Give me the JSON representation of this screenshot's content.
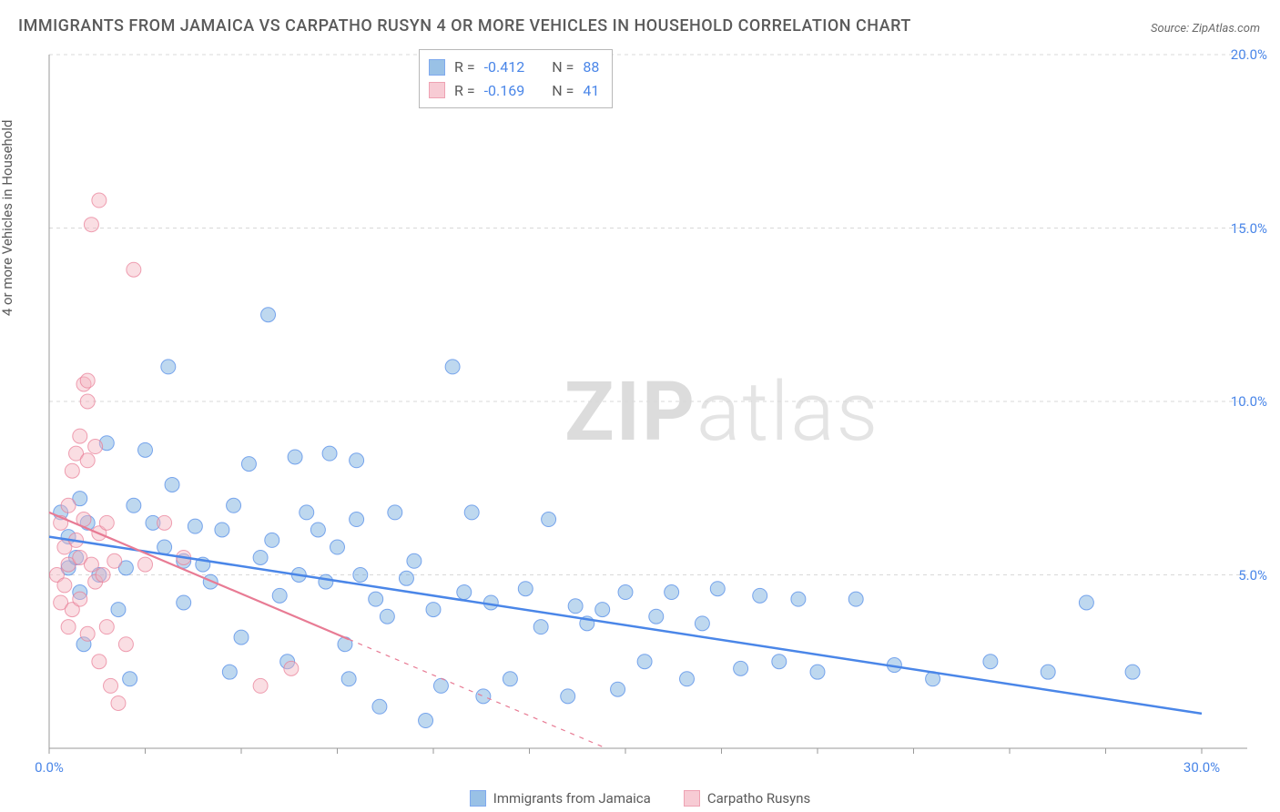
{
  "title": "IMMIGRANTS FROM JAMAICA VS CARPATHO RUSYN 4 OR MORE VEHICLES IN HOUSEHOLD CORRELATION CHART",
  "source_prefix": "Source: ",
  "source_name": "ZipAtlas.com",
  "y_axis_label": "4 or more Vehicles in Household",
  "watermark_bold": "ZIP",
  "watermark_light": "atlas",
  "chart": {
    "type": "scatter",
    "background_color": "#ffffff",
    "grid_color": "#d8d8d8",
    "axis_line_color": "#9a9a9a",
    "xlim": [
      0,
      30
    ],
    "ylim": [
      0,
      20
    ],
    "x_ticks": [
      0,
      30
    ],
    "x_tick_labels": [
      "0.0%",
      "30.0%"
    ],
    "x_tick_minor_step": 2.5,
    "y_ticks": [
      5,
      10,
      15,
      20
    ],
    "y_tick_labels": [
      "5.0%",
      "10.0%",
      "15.0%",
      "20.0%"
    ],
    "y_label_color": "#4a86e8",
    "x_label_color": "#4a86e8",
    "marker_radius": 8,
    "marker_opacity": 0.45,
    "series": [
      {
        "name": "Immigrants from Jamaica",
        "color": "#6fa8dc",
        "stroke_color": "#4a86e8",
        "r_value": "-0.412",
        "n_value": "88",
        "trend_line": {
          "x1": 0,
          "y1": 6.1,
          "x2": 30,
          "y2": 1.0,
          "width": 2.5,
          "dash_after_x": null
        },
        "points": [
          [
            0.3,
            6.8
          ],
          [
            0.5,
            5.2
          ],
          [
            0.5,
            6.1
          ],
          [
            0.7,
            5.5
          ],
          [
            0.8,
            7.2
          ],
          [
            0.8,
            4.5
          ],
          [
            0.9,
            3.0
          ],
          [
            1.0,
            6.5
          ],
          [
            1.3,
            5.0
          ],
          [
            1.5,
            8.8
          ],
          [
            1.8,
            4.0
          ],
          [
            2.0,
            5.2
          ],
          [
            2.1,
            2.0
          ],
          [
            2.2,
            7.0
          ],
          [
            2.5,
            8.6
          ],
          [
            2.7,
            6.5
          ],
          [
            3.1,
            11.0
          ],
          [
            3.0,
            5.8
          ],
          [
            3.2,
            7.6
          ],
          [
            3.5,
            5.4
          ],
          [
            3.5,
            4.2
          ],
          [
            3.8,
            6.4
          ],
          [
            4.0,
            5.3
          ],
          [
            4.2,
            4.8
          ],
          [
            4.5,
            6.3
          ],
          [
            4.7,
            2.2
          ],
          [
            4.8,
            7.0
          ],
          [
            5.0,
            3.2
          ],
          [
            5.2,
            8.2
          ],
          [
            5.5,
            5.5
          ],
          [
            5.7,
            12.5
          ],
          [
            5.8,
            6.0
          ],
          [
            6.0,
            4.4
          ],
          [
            6.2,
            2.5
          ],
          [
            6.4,
            8.4
          ],
          [
            6.5,
            5.0
          ],
          [
            6.7,
            6.8
          ],
          [
            7.0,
            6.3
          ],
          [
            7.2,
            4.8
          ],
          [
            7.3,
            8.5
          ],
          [
            7.5,
            5.8
          ],
          [
            7.7,
            3.0
          ],
          [
            7.8,
            2.0
          ],
          [
            8.0,
            6.6
          ],
          [
            8.0,
            8.3
          ],
          [
            8.1,
            5.0
          ],
          [
            8.5,
            4.3
          ],
          [
            8.6,
            1.2
          ],
          [
            8.8,
            3.8
          ],
          [
            9.0,
            6.8
          ],
          [
            9.3,
            4.9
          ],
          [
            9.5,
            5.4
          ],
          [
            9.8,
            0.8
          ],
          [
            10.0,
            4.0
          ],
          [
            10.2,
            1.8
          ],
          [
            10.5,
            11.0
          ],
          [
            10.8,
            4.5
          ],
          [
            11.0,
            6.8
          ],
          [
            11.3,
            1.5
          ],
          [
            11.5,
            4.2
          ],
          [
            12.0,
            2.0
          ],
          [
            12.4,
            4.6
          ],
          [
            12.8,
            3.5
          ],
          [
            13.0,
            6.6
          ],
          [
            13.5,
            1.5
          ],
          [
            13.7,
            4.1
          ],
          [
            14.0,
            3.6
          ],
          [
            14.4,
            4.0
          ],
          [
            14.8,
            1.7
          ],
          [
            15.0,
            4.5
          ],
          [
            15.5,
            2.5
          ],
          [
            15.8,
            3.8
          ],
          [
            16.2,
            4.5
          ],
          [
            16.6,
            2.0
          ],
          [
            17.0,
            3.6
          ],
          [
            17.4,
            4.6
          ],
          [
            18.0,
            2.3
          ],
          [
            18.5,
            4.4
          ],
          [
            19.0,
            2.5
          ],
          [
            19.5,
            4.3
          ],
          [
            20.0,
            2.2
          ],
          [
            21.0,
            4.3
          ],
          [
            22.0,
            2.4
          ],
          [
            23.0,
            2.0
          ],
          [
            24.5,
            2.5
          ],
          [
            26.0,
            2.2
          ],
          [
            27.0,
            4.2
          ],
          [
            28.2,
            2.2
          ]
        ]
      },
      {
        "name": "Carpatho Rusyns",
        "color": "#f4b6c2",
        "stroke_color": "#e87b94",
        "r_value": "-0.169",
        "n_value": "41",
        "trend_line": {
          "x1": 0,
          "y1": 6.8,
          "x2": 14.5,
          "y2": 0,
          "width": 2.2,
          "dash_after_x": 7.8
        },
        "points": [
          [
            0.2,
            5.0
          ],
          [
            0.3,
            4.2
          ],
          [
            0.3,
            6.5
          ],
          [
            0.4,
            4.7
          ],
          [
            0.4,
            5.8
          ],
          [
            0.5,
            7.0
          ],
          [
            0.5,
            3.5
          ],
          [
            0.6,
            8.0
          ],
          [
            0.5,
            5.3
          ],
          [
            0.6,
            4.0
          ],
          [
            0.7,
            6.0
          ],
          [
            0.7,
            8.5
          ],
          [
            0.8,
            9.0
          ],
          [
            0.8,
            5.5
          ],
          [
            0.8,
            4.3
          ],
          [
            0.9,
            10.5
          ],
          [
            0.9,
            6.6
          ],
          [
            1.0,
            3.3
          ],
          [
            1.0,
            8.3
          ],
          [
            1.0,
            10.0
          ],
          [
            1.0,
            10.6
          ],
          [
            1.1,
            5.3
          ],
          [
            1.1,
            15.1
          ],
          [
            1.2,
            4.8
          ],
          [
            1.2,
            8.7
          ],
          [
            1.3,
            6.2
          ],
          [
            1.3,
            2.5
          ],
          [
            1.3,
            15.8
          ],
          [
            1.4,
            5.0
          ],
          [
            1.5,
            6.5
          ],
          [
            1.5,
            3.5
          ],
          [
            1.6,
            1.8
          ],
          [
            1.7,
            5.4
          ],
          [
            1.8,
            1.3
          ],
          [
            2.0,
            3.0
          ],
          [
            2.2,
            13.8
          ],
          [
            2.5,
            5.3
          ],
          [
            3.0,
            6.5
          ],
          [
            3.5,
            5.5
          ],
          [
            5.5,
            1.8
          ],
          [
            6.3,
            2.3
          ]
        ]
      }
    ]
  },
  "stats_box": {
    "r_label": "R =",
    "n_label": "N =",
    "value_color": "#4a86e8",
    "label_color": "#5a5a5a"
  }
}
